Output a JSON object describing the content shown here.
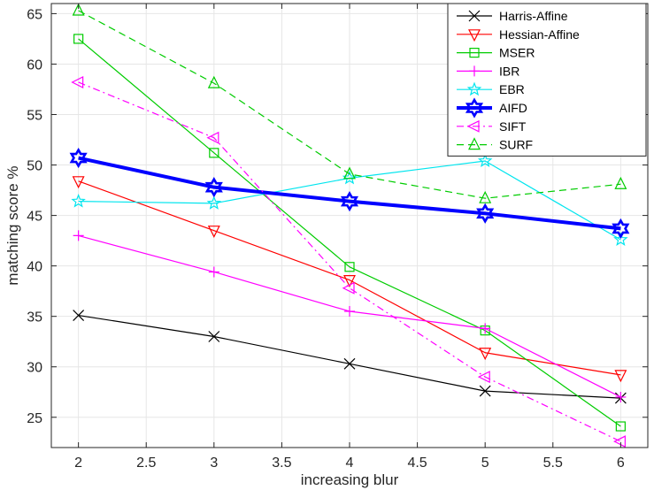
{
  "chart_data": {
    "type": "line",
    "xlabel": "increasing blur",
    "ylabel": "matching score %",
    "x": [
      2,
      3,
      4,
      5,
      6
    ],
    "xlim": [
      1.8,
      6.2
    ],
    "ylim": [
      22,
      66
    ],
    "xticks": [
      2,
      2.5,
      3,
      3.5,
      4,
      4.5,
      5,
      5.5,
      6
    ],
    "xtick_labels": [
      "2",
      "2.5",
      "3",
      "3.5",
      "4",
      "4.5",
      "5",
      "5.5",
      "6"
    ],
    "yticks": [
      25,
      30,
      35,
      40,
      45,
      50,
      55,
      60,
      65
    ],
    "ytick_labels": [
      "25",
      "30",
      "35",
      "40",
      "45",
      "50",
      "55",
      "60",
      "65"
    ],
    "grid": true,
    "legend_position": "top-right",
    "series": [
      {
        "name": "Harris-Affine",
        "values": [
          35.1,
          33.0,
          30.3,
          27.6,
          26.9
        ],
        "color": "#000000",
        "marker": "x",
        "dash": "solid",
        "width": "normal"
      },
      {
        "name": "Hessian-Affine",
        "values": [
          48.4,
          43.5,
          38.6,
          31.4,
          29.2
        ],
        "color": "#ff0000",
        "marker": "triangle-down",
        "dash": "solid",
        "width": "normal"
      },
      {
        "name": "MSER",
        "values": [
          62.5,
          51.2,
          39.9,
          33.6,
          24.1
        ],
        "color": "#00cc00",
        "marker": "square",
        "dash": "solid",
        "width": "normal"
      },
      {
        "name": "IBR",
        "values": [
          43.0,
          39.4,
          35.5,
          33.8,
          27.0
        ],
        "color": "#ff00ff",
        "marker": "plus",
        "dash": "solid",
        "width": "normal"
      },
      {
        "name": "EBR",
        "values": [
          46.4,
          46.2,
          48.7,
          50.4,
          42.6
        ],
        "color": "#00e5ee",
        "marker": "star",
        "dash": "solid",
        "width": "normal"
      },
      {
        "name": "AIFD",
        "values": [
          50.7,
          47.8,
          46.4,
          45.2,
          43.7
        ],
        "color": "#0000ff",
        "marker": "hexagram",
        "dash": "solid",
        "width": "thick"
      },
      {
        "name": "SIFT",
        "values": [
          58.2,
          52.7,
          37.8,
          29.0,
          22.6
        ],
        "color": "#ff00ff",
        "marker": "triangle-left",
        "dash": "dashdot",
        "width": "normal"
      },
      {
        "name": "SURF",
        "values": [
          65.3,
          58.1,
          49.1,
          46.7,
          48.1
        ],
        "color": "#00cc00",
        "marker": "triangle-up",
        "dash": "dashed",
        "width": "normal"
      }
    ]
  }
}
